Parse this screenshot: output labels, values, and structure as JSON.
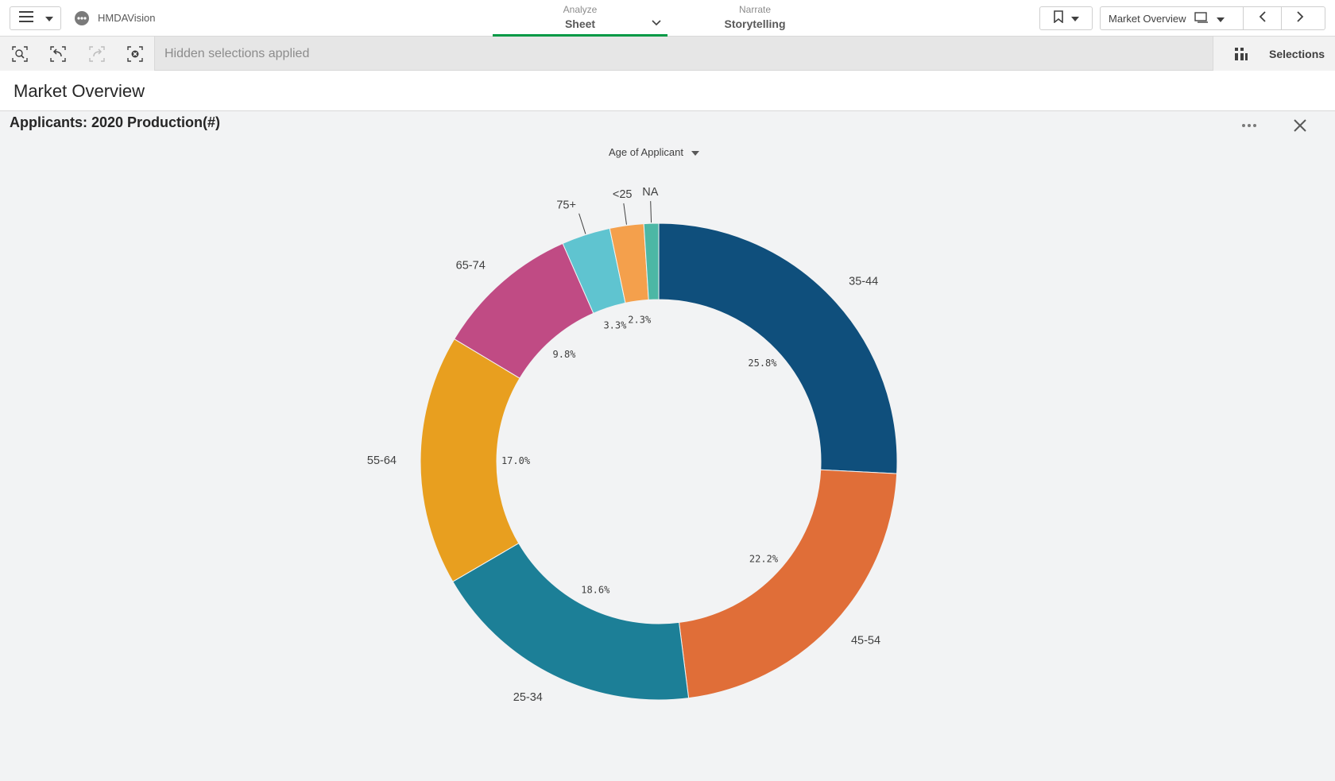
{
  "app": {
    "name": "HMDAVision"
  },
  "tabs": {
    "analyze": {
      "small": "Analyze",
      "big": "Sheet"
    },
    "narrate": {
      "small": "Narrate",
      "big": "Storytelling"
    }
  },
  "sheet_nav": {
    "current": "Market Overview"
  },
  "selection_bar": {
    "status": "Hidden selections applied",
    "selections_label": "Selections"
  },
  "sheet": {
    "title": "Market Overview"
  },
  "chart": {
    "title": "Applicants: 2020 Production(#)",
    "dimension_label": "Age of Applicant"
  },
  "chart_data": {
    "type": "pie",
    "variant": "donut",
    "title": "Applicants: 2020 Production(#)",
    "dimension": "Age of Applicant",
    "categories": [
      "35-44",
      "45-54",
      "25-34",
      "55-64",
      "65-74",
      "75+",
      "<25",
      "NA"
    ],
    "values": [
      25.8,
      22.2,
      18.6,
      17.0,
      9.8,
      3.3,
      2.3,
      1.0
    ],
    "value_labels": [
      "25.8%",
      "22.2%",
      "18.6%",
      "17.0%",
      "9.8%",
      "3.3%",
      "2.3%",
      ""
    ],
    "colors": [
      "#0f4f7c",
      "#e06e38",
      "#1c7f97",
      "#e89f1f",
      "#c04b84",
      "#5fc4d0",
      "#f4a04c",
      "#4cb7a5"
    ],
    "legend": "none"
  }
}
